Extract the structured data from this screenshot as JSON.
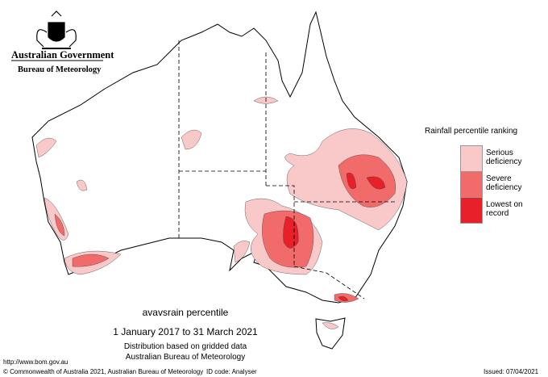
{
  "header": {
    "government": "Australian Government",
    "agency": "Bureau of Meteorology"
  },
  "legend": {
    "title": "Rainfall percentile ranking",
    "items": [
      {
        "label": "Serious deficiency",
        "color": "#f9c8c8"
      },
      {
        "label": "Severe deficiency",
        "color": "#f26b6b"
      },
      {
        "label": "Lowest on record",
        "color": "#e8202a"
      }
    ]
  },
  "caption": {
    "title": "avavsrain percentile",
    "period": "1 January 2017 to 31 March 2021",
    "note": "Distribution based on gridded data",
    "source": "Australian Bureau of Meteorology"
  },
  "footer": {
    "url": "http://www.bom.gov.au",
    "copyright": "© Commonwealth of Australia 2021, Australian Bureau of Meteorology",
    "id_code": "ID code: Analyser",
    "issued": "Issued: 07/04/2021"
  }
}
